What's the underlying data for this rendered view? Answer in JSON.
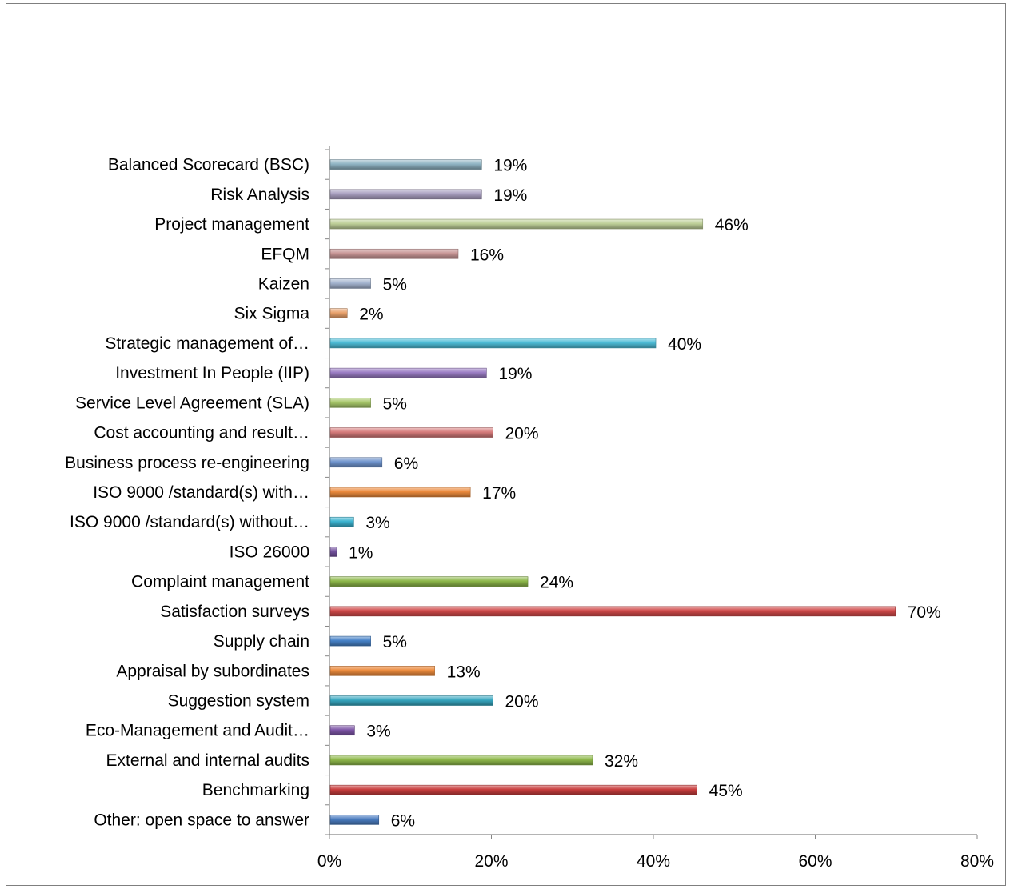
{
  "chart_data": {
    "type": "bar",
    "orientation": "horizontal",
    "title": "",
    "xlabel": "",
    "ylabel": "",
    "xlim": [
      0,
      80
    ],
    "x_ticks": [
      "0%",
      "20%",
      "40%",
      "60%",
      "80%"
    ],
    "grid": false,
    "legend": "none",
    "categories": [
      "Balanced Scorecard (BSC)",
      "Risk Analysis",
      "Project management",
      "EFQM",
      "Kaizen",
      "Six Sigma",
      "Strategic management of…",
      "Investment In People (IIP)",
      "Service Level Agreement (SLA)",
      "Cost accounting and result…",
      "Business process re-engineering",
      "ISO 9000 /standard(s) with…",
      "ISO 9000 /standard(s) without…",
      "ISO 26000",
      "Complaint management",
      "Satisfaction surveys",
      "Supply chain",
      "Appraisal by subordinates",
      "Suggestion system",
      "Eco-Management and Audit…",
      "External and internal audits",
      "Benchmarking",
      "Other: open space to answer"
    ],
    "values": [
      18.7,
      18.7,
      46,
      15.8,
      5,
      2.1,
      40.2,
      19.3,
      5,
      20.1,
      6.4,
      17.3,
      2.9,
      0.8,
      24.4,
      69.8,
      5,
      12.9,
      20.1,
      3,
      32.4,
      45.3,
      6
    ],
    "value_labels": [
      "19%",
      "19%",
      "46%",
      "16%",
      "5%",
      "2%",
      "40%",
      "19%",
      "5%",
      "20%",
      "6%",
      "17%",
      "3%",
      "1%",
      "24%",
      "70%",
      "5%",
      "13%",
      "20%",
      "3%",
      "32%",
      "45%",
      "6%"
    ],
    "colors": [
      "#8FB4C4",
      "#A99FC0",
      "#BFD099",
      "#C79595",
      "#A4B4CF",
      "#E8A06A",
      "#4DBCD6",
      "#9B7DC4",
      "#A8C86A",
      "#D67B7B",
      "#6E93CC",
      "#EC8A3C",
      "#3BB3D0",
      "#7553A0",
      "#8DB84A",
      "#D04848",
      "#4682C8",
      "#EC8A3C",
      "#36A6BF",
      "#7D55A6",
      "#8EB84A",
      "#C93E3E",
      "#4A7CC0"
    ]
  }
}
